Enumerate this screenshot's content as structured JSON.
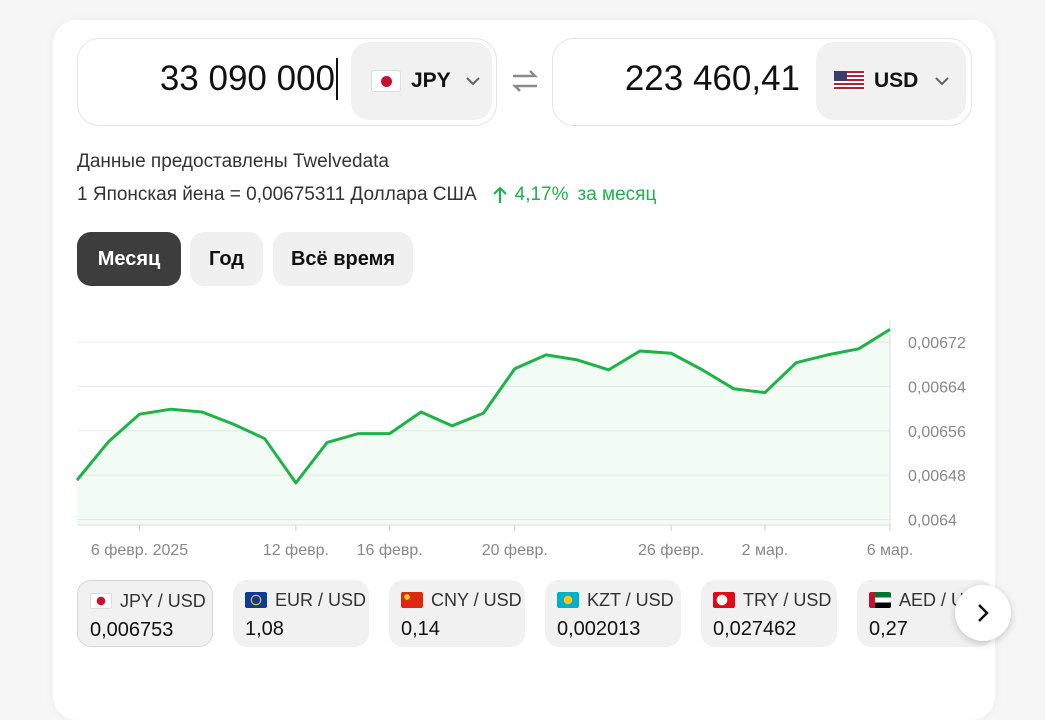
{
  "converter": {
    "from_amount": "33 090 000",
    "from_currency": "JPY",
    "to_amount": "223 460,41",
    "to_currency": "USD"
  },
  "source": "Данные предоставлены Twelvedata",
  "rate": {
    "text": "1 Японская йена = 0,00675311 Доллара США",
    "change": "4,17%",
    "period": "за месяц"
  },
  "tabs": [
    "Месяц",
    "Год",
    "Всё время"
  ],
  "chart_data": {
    "type": "line",
    "color": "#1db347",
    "grid": true,
    "categories": [
      null,
      null,
      "6 февр. 2025",
      null,
      null,
      null,
      null,
      "12 февр.",
      null,
      null,
      "16 февр.",
      null,
      null,
      null,
      "20 февр.",
      null,
      null,
      null,
      null,
      "26 февр.",
      null,
      null,
      "2 мар.",
      null,
      null,
      null,
      "6 мар."
    ],
    "values": [
      0.006471,
      0.00654,
      0.00659,
      0.006599,
      0.006594,
      0.006572,
      0.006546,
      0.006466,
      0.006539,
      0.006555,
      0.006555,
      0.006594,
      0.006569,
      0.006592,
      0.006672,
      0.006697,
      0.006688,
      0.00667,
      0.006704,
      0.0067,
      0.00667,
      0.006636,
      0.006629,
      0.006683,
      0.006697,
      0.006708,
      0.006743
    ],
    "ylim": [
      0.00639,
      0.00676
    ],
    "yticks": [
      {
        "value": 0.0064,
        "label": "0,0064"
      },
      {
        "value": 0.00648,
        "label": "0,00648"
      },
      {
        "value": 0.00656,
        "label": "0,00656"
      },
      {
        "value": 0.00664,
        "label": "0,00664"
      },
      {
        "value": 0.00672,
        "label": "0,00672"
      }
    ]
  },
  "pairs": [
    {
      "name": "JPY / USD",
      "rate": "0,006753"
    },
    {
      "name": "EUR / USD",
      "rate": "1,08"
    },
    {
      "name": "CNY / USD",
      "rate": "0,14"
    },
    {
      "name": "KZT / USD",
      "rate": "0,002013"
    },
    {
      "name": "TRY / USD",
      "rate": "0,027462"
    },
    {
      "name": "AED / USD",
      "rate": "0,27"
    }
  ]
}
